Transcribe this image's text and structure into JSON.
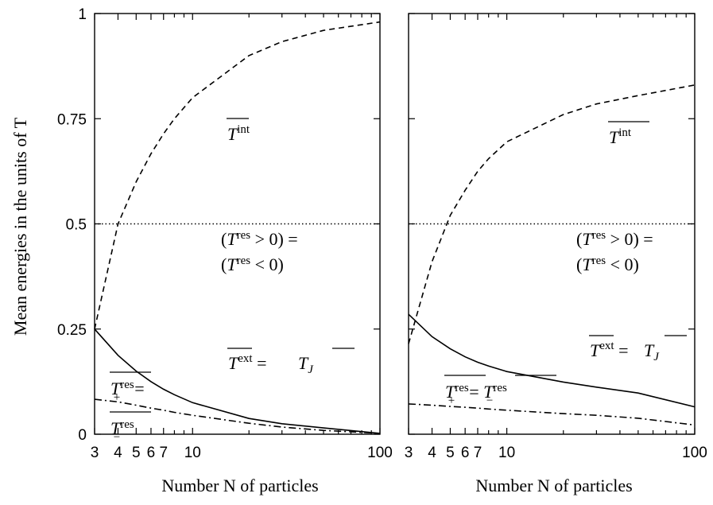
{
  "chart_data": {
    "type": "line",
    "ylabel": "Mean energies in the units of T",
    "xlabel": "Number N of particles",
    "xscale": "log-of-inverse (1/N)",
    "xlim": [
      3,
      100
    ],
    "ylim": [
      0,
      1
    ],
    "x_ticks": [
      {
        "value": 3,
        "label": "3"
      },
      {
        "value": 4,
        "label": "4"
      },
      {
        "value": 5,
        "label": "5"
      },
      {
        "value": 6,
        "label": "6"
      },
      {
        "value": 7,
        "label": "7"
      },
      {
        "value": 10,
        "label": "10"
      },
      {
        "value": 100,
        "label": "100"
      }
    ],
    "x_minor_ticks": [
      8,
      9,
      20,
      30,
      40,
      50,
      60,
      70,
      80,
      90
    ],
    "y_ticks": [
      {
        "value": 0,
        "label": "0"
      },
      {
        "value": 0.25,
        "label": "0.25"
      },
      {
        "value": 0.5,
        "label": "0.5"
      },
      {
        "value": 0.75,
        "label": "0.75"
      },
      {
        "value": 1,
        "label": "1"
      }
    ],
    "panels": [
      {
        "show_y_tick_labels": true,
        "series": [
          {
            "key": "int",
            "style": "dashed",
            "points": [
              [
                3,
                0.25
              ],
              [
                4,
                0.5
              ],
              [
                5,
                0.6
              ],
              [
                6,
                0.667
              ],
              [
                7,
                0.714
              ],
              [
                8,
                0.75
              ],
              [
                10,
                0.8
              ],
              [
                20,
                0.9
              ],
              [
                30,
                0.933
              ],
              [
                50,
                0.96
              ],
              [
                100,
                0.98
              ]
            ]
          },
          {
            "key": "ext",
            "style": "solid",
            "points": [
              [
                3,
                0.25
              ],
              [
                4,
                0.1875
              ],
              [
                5,
                0.15
              ],
              [
                6,
                0.125
              ],
              [
                7,
                0.107
              ],
              [
                8,
                0.094
              ],
              [
                10,
                0.075
              ],
              [
                20,
                0.0375
              ],
              [
                30,
                0.025
              ],
              [
                50,
                0.015
              ],
              [
                100,
                0.002
              ]
            ]
          },
          {
            "key": "half",
            "style": "dotted",
            "points": [
              [
                3,
                0.5
              ],
              [
                100,
                0.5
              ]
            ]
          },
          {
            "key": "res",
            "style": "dashdot",
            "points": [
              [
                3,
                0.083
              ],
              [
                4,
                0.077
              ],
              [
                5,
                0.069
              ],
              [
                6,
                0.062
              ],
              [
                7,
                0.057
              ],
              [
                8,
                0.052
              ],
              [
                10,
                0.045
              ],
              [
                20,
                0.026
              ],
              [
                30,
                0.017
              ],
              [
                50,
                0.009
              ],
              [
                100,
                0.002
              ]
            ]
          }
        ]
      },
      {
        "show_y_tick_labels": false,
        "series": [
          {
            "key": "int",
            "style": "dashed",
            "points": [
              [
                3,
                0.215
              ],
              [
                4,
                0.41
              ],
              [
                5,
                0.52
              ],
              [
                6,
                0.58
              ],
              [
                7,
                0.625
              ],
              [
                8,
                0.655
              ],
              [
                10,
                0.695
              ],
              [
                20,
                0.76
              ],
              [
                30,
                0.785
              ],
              [
                50,
                0.805
              ],
              [
                100,
                0.83
              ]
            ]
          },
          {
            "key": "ext",
            "style": "solid",
            "points": [
              [
                3,
                0.285
              ],
              [
                4,
                0.232
              ],
              [
                5,
                0.203
              ],
              [
                6,
                0.184
              ],
              [
                7,
                0.171
              ],
              [
                8,
                0.162
              ],
              [
                10,
                0.149
              ],
              [
                20,
                0.124
              ],
              [
                30,
                0.112
              ],
              [
                50,
                0.098
              ],
              [
                100,
                0.065
              ]
            ]
          },
          {
            "key": "half",
            "style": "dotted",
            "points": [
              [
                3,
                0.5
              ],
              [
                100,
                0.5
              ]
            ]
          },
          {
            "key": "res",
            "style": "dashdot",
            "points": [
              [
                3,
                0.072
              ],
              [
                4,
                0.069
              ],
              [
                5,
                0.066
              ],
              [
                6,
                0.064
              ],
              [
                7,
                0.062
              ],
              [
                8,
                0.06
              ],
              [
                10,
                0.057
              ],
              [
                20,
                0.049
              ],
              [
                30,
                0.045
              ],
              [
                50,
                0.038
              ],
              [
                100,
                0.022
              ]
            ]
          }
        ]
      }
    ],
    "annotations": {
      "t_int": "T int",
      "t_ext_tj": "T ext = T J",
      "res_pos_eq": "(T res > 0) =",
      "res_neg": "(T res < 0)",
      "t_plus_res_eq": "T + res =",
      "t_minus_res": "T − res",
      "t_plus_eq_minus": "T + res = T − res"
    }
  },
  "text": {
    "y": "ylabel",
    "x": "xlabel"
  }
}
